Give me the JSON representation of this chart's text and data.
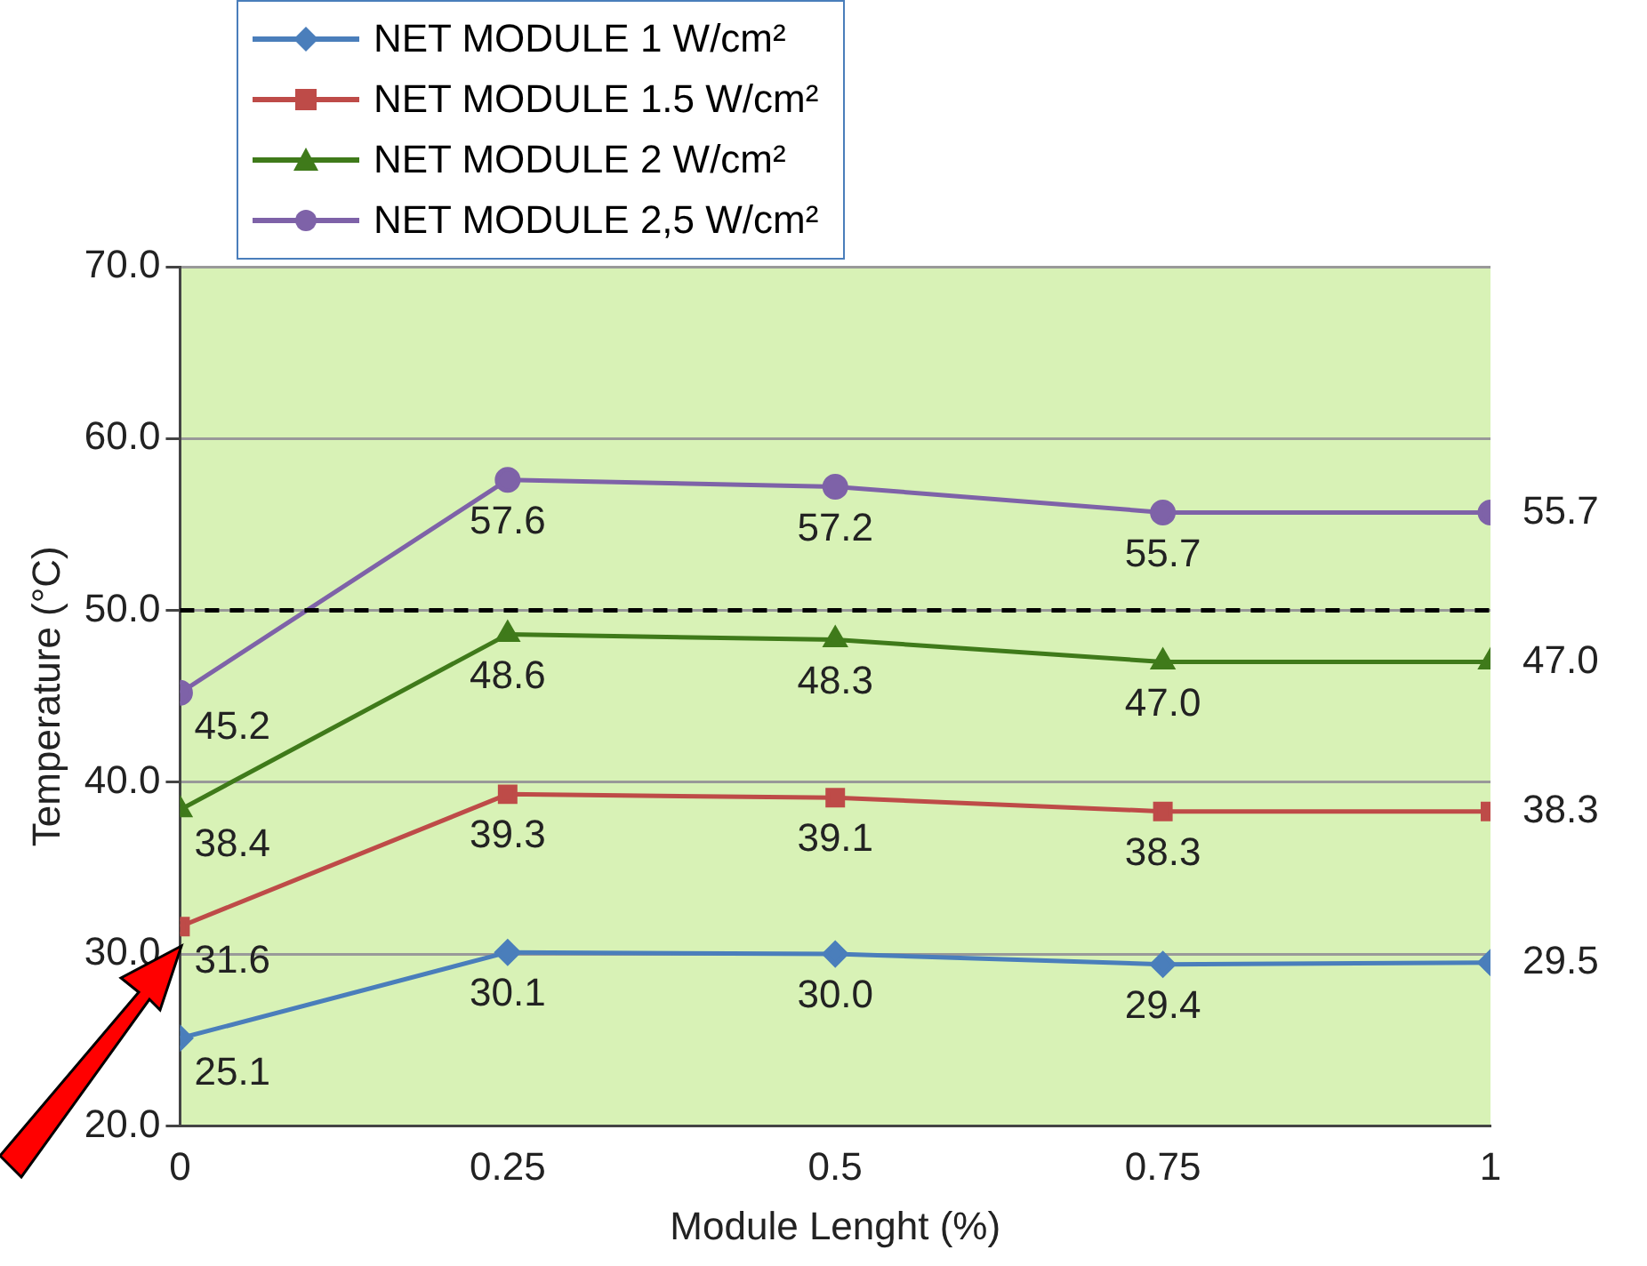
{
  "chart_data": {
    "type": "line",
    "xlabel": "Module Lenght (%)",
    "ylabel": "Temperature (°C)",
    "x": [
      0,
      0.25,
      0.5,
      0.75,
      1
    ],
    "series": [
      {
        "name": "NET MODULE 1 W/cm²",
        "color": "#4a7ebb",
        "marker": "diamond",
        "values": [
          25.1,
          30.1,
          30.0,
          29.4,
          29.5
        ],
        "value_labels": [
          "25.1",
          "30.1",
          "30.0",
          "29.4",
          "29.5"
        ]
      },
      {
        "name": "NET MODULE 1.5 W/cm²",
        "color": "#be4b48",
        "marker": "square",
        "values": [
          31.6,
          39.3,
          39.1,
          38.3,
          38.3
        ],
        "value_labels": [
          "31.6",
          "39.3",
          "39.1",
          "38.3",
          "38.3"
        ]
      },
      {
        "name": "NET MODULE 2 W/cm²",
        "color": "#3f7a1a",
        "marker": "triangle",
        "values": [
          38.4,
          48.6,
          48.3,
          47.0,
          47.0
        ],
        "value_labels": [
          "38.4",
          "48.6",
          "48.3",
          "47.0",
          "47.0"
        ]
      },
      {
        "name": "NET MODULE 2,5 W/cm²",
        "color": "#7e62a8",
        "marker": "circle",
        "values": [
          45.2,
          57.6,
          57.2,
          55.7,
          55.7
        ],
        "value_labels": [
          "45.2",
          "57.6",
          "57.2",
          "55.7",
          "55.7"
        ]
      }
    ],
    "xlim": [
      0,
      1
    ],
    "xticks": [
      0,
      0.25,
      0.5,
      0.75,
      1
    ],
    "ylim": [
      20,
      70
    ],
    "yticks": [
      {
        "value": 20,
        "label": "20.0"
      },
      {
        "value": 30,
        "label": "30.0"
      },
      {
        "value": 40,
        "label": "40.0"
      },
      {
        "value": 50,
        "label": "50.0"
      },
      {
        "value": 60,
        "label": "60.0"
      },
      {
        "value": 70,
        "label": "70.0"
      }
    ],
    "ref_lines": [
      {
        "axis": "y",
        "value": 50,
        "color": "#000000",
        "line_style": "dashed"
      }
    ],
    "grid": "y",
    "legend": "top left",
    "line_style": "solid"
  }
}
